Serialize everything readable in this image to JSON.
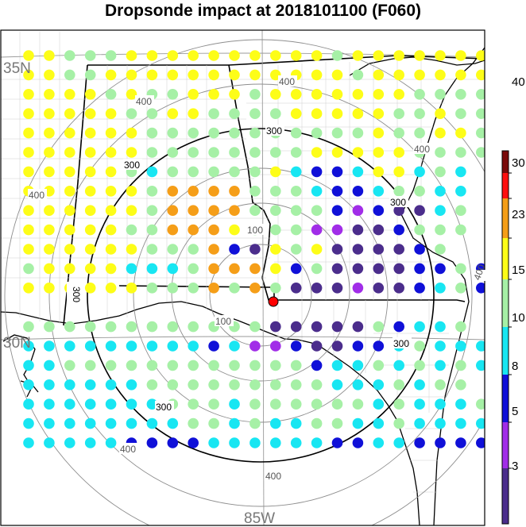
{
  "title": "Dropsonde impact at 2018101100 (F060)",
  "grid_labels": {
    "lat_35": "35N",
    "lat_30": "30N",
    "lon_85": "85W"
  },
  "colorbar": {
    "labels": [
      "3",
      "5",
      "8",
      "10",
      "15",
      "23",
      "30",
      "40"
    ],
    "colors": [
      "#4b2d8c",
      "#a12de8",
      "#1010d8",
      "#18e6f2",
      "#a6f0a6",
      "#fdfd18",
      "#f59e18",
      "#ff1010",
      "#7a0a0a"
    ],
    "top_color": "#7a0a0a"
  },
  "range_rings": {
    "gray_labels": [
      "100",
      "100",
      "400",
      "400",
      "400",
      "400",
      "400",
      "400",
      "400"
    ],
    "black_labels": [
      "300",
      "300",
      "300",
      "300",
      "300",
      "300"
    ]
  },
  "center_marker": {
    "color": "#ff0000"
  },
  "dots": {
    "class_colors": [
      "#4b2d8c",
      "#a12de8",
      "#1010d8",
      "#18e6f2",
      "#a6f0a6",
      "#fdfd18",
      "#f59e18"
    ],
    "rows": [
      "55444555555555545555555",
      "55445555555555554555555",
      "55554544555455555554444",
      "55555445544445555544544",
      "55555544444444444544554",
      "55555544444444555554444",
      "5555543444445322355343",
      "5555554666644432234433",
      "5555554666644442120034",
      "5555544666544411002444",
      "555555444620545000024",
      "45555333466652400002242",
      "55555544464640001002342",
      "",
      "4444444444440000042334",
      "33333333323112002234333",
      "33444444444444233434343",
      "3333334444444443334344",
      "33333334443444444343334",
      "33333333443433443343333",
      "33333222233333322332222"
    ]
  }
}
